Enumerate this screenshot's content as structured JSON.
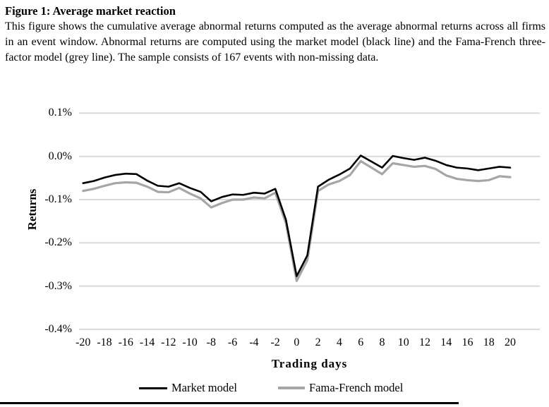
{
  "figure": {
    "title": "Figure 1: Average market reaction",
    "caption": "This figure shows the cumulative average abnormal returns computed as the average abnormal returns across all firms in an event window. Abnormal returns are computed using the market model (black line) and the Fama-French three-factor model (grey line). The sample consists of 167 events with non-missing data."
  },
  "colors": {
    "market_line": "#000000",
    "fama_french_line": "#a6a6a6",
    "gridline": "#d9d9d9"
  },
  "chart_data": {
    "type": "line",
    "title": "",
    "xlabel": "Trading days",
    "ylabel": "Returns",
    "xlim": [
      -20,
      20
    ],
    "ylim": [
      -0.4,
      0.1
    ],
    "grid": "horizontal",
    "legend_position": "bottom",
    "x": [
      -20,
      -19,
      -18,
      -17,
      -16,
      -15,
      -14,
      -13,
      -12,
      -11,
      -10,
      -9,
      -8,
      -7,
      -6,
      -5,
      -4,
      -3,
      -2,
      -1,
      0,
      1,
      2,
      3,
      4,
      5,
      6,
      7,
      8,
      9,
      10,
      11,
      12,
      13,
      14,
      15,
      16,
      17,
      18,
      19,
      20
    ],
    "xticks": [
      -20,
      -18,
      -16,
      -14,
      -12,
      -10,
      -8,
      -6,
      -4,
      -2,
      0,
      2,
      4,
      6,
      8,
      10,
      12,
      14,
      16,
      18,
      20
    ],
    "yticks": [
      {
        "label": "0.1%",
        "value": 0.1
      },
      {
        "label": "0.0%",
        "value": 0.0
      },
      {
        "label": "-0.1%",
        "value": -0.1
      },
      {
        "label": "-0.2%",
        "value": -0.2
      },
      {
        "label": "-0.3%",
        "value": -0.3
      },
      {
        "label": "-0.4%",
        "value": -0.4
      }
    ],
    "unit": "percent",
    "series": [
      {
        "name": "Market model",
        "color": "#000000",
        "values": [
          -0.062,
          -0.057,
          -0.049,
          -0.043,
          -0.04,
          -0.041,
          -0.056,
          -0.068,
          -0.07,
          -0.062,
          -0.073,
          -0.082,
          -0.104,
          -0.094,
          -0.088,
          -0.089,
          -0.084,
          -0.086,
          -0.075,
          -0.147,
          -0.277,
          -0.229,
          -0.07,
          -0.054,
          -0.042,
          -0.028,
          0.002,
          -0.012,
          -0.026,
          0.001,
          -0.004,
          -0.008,
          -0.003,
          -0.01,
          -0.02,
          -0.026,
          -0.028,
          -0.032,
          -0.028,
          -0.024,
          -0.026
        ]
      },
      {
        "name": "Fama-French model",
        "color": "#a6a6a6",
        "values": [
          -0.08,
          -0.075,
          -0.068,
          -0.062,
          -0.06,
          -0.061,
          -0.07,
          -0.082,
          -0.083,
          -0.073,
          -0.086,
          -0.097,
          -0.118,
          -0.108,
          -0.1,
          -0.1,
          -0.095,
          -0.097,
          -0.084,
          -0.155,
          -0.288,
          -0.24,
          -0.08,
          -0.065,
          -0.057,
          -0.043,
          -0.011,
          -0.026,
          -0.041,
          -0.016,
          -0.02,
          -0.024,
          -0.022,
          -0.029,
          -0.044,
          -0.052,
          -0.055,
          -0.057,
          -0.055,
          -0.046,
          -0.048
        ]
      }
    ]
  }
}
